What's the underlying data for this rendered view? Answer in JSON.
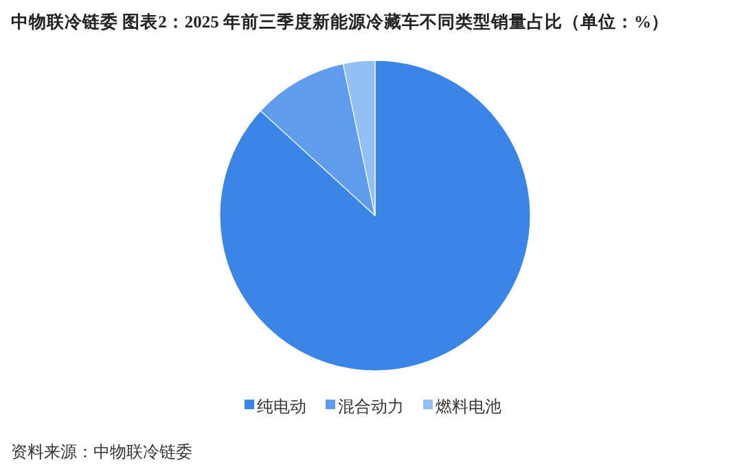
{
  "chart_data": {
    "type": "pie",
    "title": "中物联冷链委  图表2：2025 年前三季度新能源冷藏车不同类型销量占比（单位：%）",
    "categories": [
      "纯电动",
      "混合动力",
      "燃料电池"
    ],
    "values": [
      86.8,
      9.9,
      3.3
    ],
    "colors": [
      "#3b85e6",
      "#609cec",
      "#93bff5"
    ],
    "legend": "bottom",
    "annotations": [
      "资料来源：中物联冷链委"
    ]
  }
}
